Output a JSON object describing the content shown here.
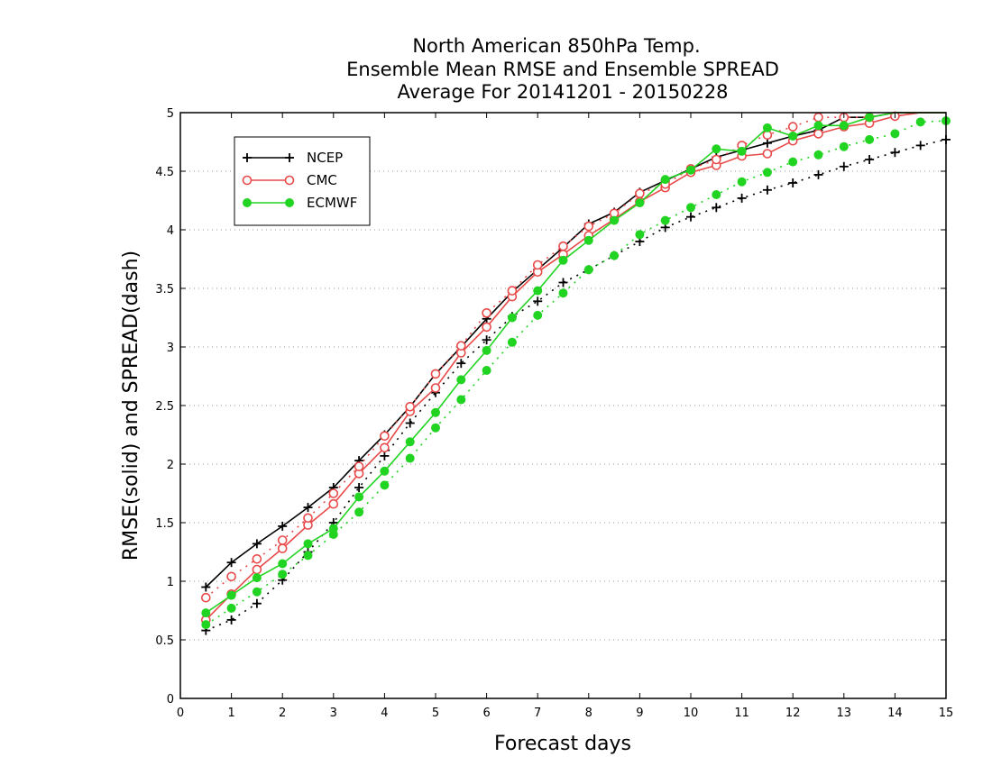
{
  "chart_data": {
    "type": "line",
    "title_lines": [
      "North American 850hPa Temp.",
      "Ensemble Mean RMSE and Ensemble SPREAD",
      "Average For 20141201 - 20150228"
    ],
    "xlabel": "Forecast days",
    "ylabel": "RMSE(solid) and SPREAD(dash)",
    "xlim": [
      0,
      15
    ],
    "ylim": [
      0,
      5
    ],
    "x_ticks": [
      "0",
      "1",
      "2",
      "3",
      "4",
      "5",
      "6",
      "7",
      "8",
      "9",
      "10",
      "11",
      "12",
      "13",
      "14",
      "15"
    ],
    "y_ticks": [
      "0",
      "0.5",
      "1",
      "1.5",
      "2",
      "2.5",
      "3",
      "3.5",
      "4",
      "4.5",
      "5"
    ],
    "grid": "horizontal dotted",
    "legend_position": "top-left",
    "x": [
      0.5,
      1,
      1.5,
      2,
      2.5,
      3,
      3.5,
      4,
      4.5,
      5,
      5.5,
      6,
      6.5,
      7,
      7.5,
      8,
      8.5,
      9,
      9.5,
      10,
      10.5,
      11,
      11.5,
      12,
      12.5,
      13,
      13.5,
      14,
      14.5,
      15
    ],
    "series": [
      {
        "name": "NCEP",
        "color": "#000000",
        "marker": "plus",
        "rmse": [
          0.95,
          1.16,
          1.32,
          1.47,
          1.63,
          1.8,
          2.03,
          2.25,
          2.49,
          2.77,
          3.0,
          3.24,
          3.47,
          3.66,
          3.85,
          4.05,
          4.15,
          4.32,
          4.42,
          4.52,
          4.62,
          4.68,
          4.74,
          4.8,
          4.85,
          4.96,
          4.96,
          5.0,
          5.0,
          5.0
        ],
        "spread": [
          0.58,
          0.67,
          0.81,
          1.01,
          1.25,
          1.5,
          1.8,
          2.07,
          2.35,
          2.61,
          2.86,
          3.06,
          3.26,
          3.39,
          3.55,
          3.66,
          3.78,
          3.9,
          4.02,
          4.11,
          4.19,
          4.27,
          4.34,
          4.4,
          4.47,
          4.54,
          4.6,
          4.66,
          4.72,
          4.77
        ]
      },
      {
        "name": "CMC",
        "color": "#e84a4a",
        "marker": "circle",
        "rmse": [
          0.67,
          0.89,
          1.1,
          1.28,
          1.48,
          1.66,
          1.92,
          2.14,
          2.45,
          2.65,
          2.95,
          3.17,
          3.43,
          3.64,
          3.79,
          3.95,
          4.09,
          4.24,
          4.36,
          4.49,
          4.55,
          4.63,
          4.65,
          4.76,
          4.82,
          4.88,
          4.91,
          4.97,
          5.0,
          5.0
        ],
        "spread": [
          0.86,
          1.04,
          1.19,
          1.35,
          1.54,
          1.75,
          1.98,
          2.24,
          2.49,
          2.77,
          3.01,
          3.29,
          3.48,
          3.7,
          3.86,
          4.03,
          4.14,
          4.31,
          4.39,
          4.52,
          4.6,
          4.72,
          4.81,
          4.88,
          4.96,
          4.96,
          4.96,
          5.0,
          5.0,
          5.0
        ]
      },
      {
        "name": "ECMWF",
        "color": "#22d422",
        "marker": "dot",
        "rmse": [
          0.73,
          0.88,
          1.03,
          1.15,
          1.32,
          1.45,
          1.72,
          1.94,
          2.19,
          2.44,
          2.72,
          2.97,
          3.25,
          3.48,
          3.74,
          3.91,
          4.08,
          4.23,
          4.43,
          4.51,
          4.69,
          4.67,
          4.87,
          4.8,
          4.89,
          4.89,
          4.96,
          5.0,
          5.0,
          5.0
        ],
        "spread": [
          0.63,
          0.77,
          0.91,
          1.06,
          1.22,
          1.4,
          1.59,
          1.82,
          2.05,
          2.31,
          2.55,
          2.8,
          3.04,
          3.27,
          3.46,
          3.66,
          3.78,
          3.96,
          4.08,
          4.19,
          4.3,
          4.41,
          4.49,
          4.58,
          4.64,
          4.71,
          4.77,
          4.82,
          4.92,
          4.93
        ]
      }
    ]
  }
}
